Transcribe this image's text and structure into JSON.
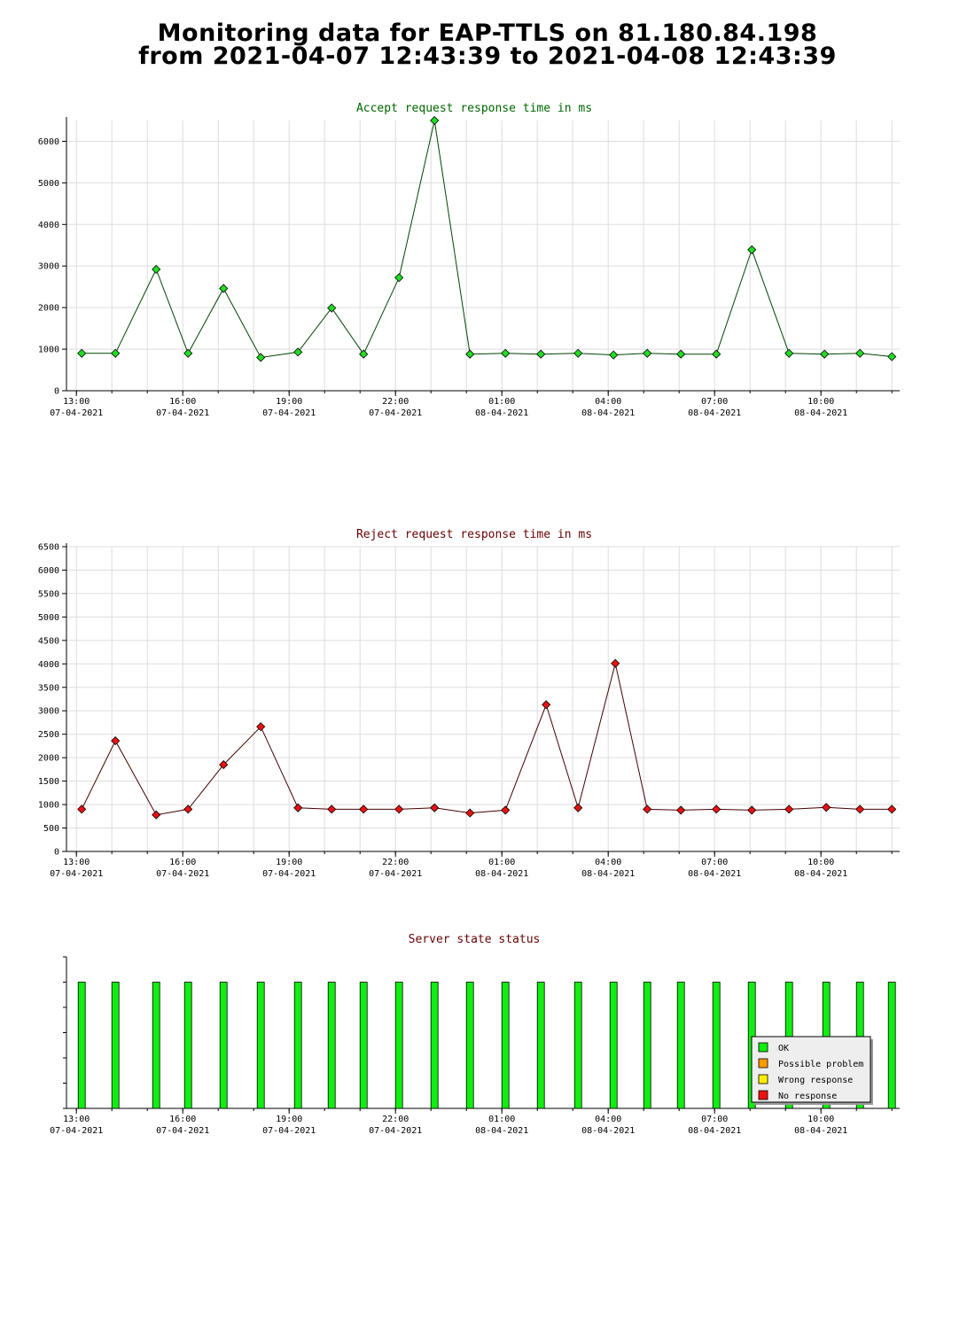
{
  "page": {
    "title_line1": "Monitoring data for EAP-TTLS on 81.180.84.198",
    "title_line2": "from 2021-04-07 12:43:39 to 2021-04-08 12:43:39"
  },
  "x_ticks": [
    {
      "hour": 13,
      "time": "13:00",
      "date": "07-04-2021"
    },
    {
      "hour": 16,
      "time": "16:00",
      "date": "07-04-2021"
    },
    {
      "hour": 19,
      "time": "19:00",
      "date": "07-04-2021"
    },
    {
      "hour": 22,
      "time": "22:00",
      "date": "07-04-2021"
    },
    {
      "hour": 25,
      "time": "01:00",
      "date": "08-04-2021"
    },
    {
      "hour": 28,
      "time": "04:00",
      "date": "08-04-2021"
    },
    {
      "hour": 31,
      "time": "07:00",
      "date": "08-04-2021"
    },
    {
      "hour": 34,
      "time": "10:00",
      "date": "08-04-2021"
    }
  ],
  "chart_data": [
    {
      "type": "line",
      "title": "Accept request response time in ms",
      "title_color": "#006600",
      "marker_color": "#22dd22",
      "line_color": "#004400",
      "xlim": [
        12.72,
        36.22
      ],
      "ylim": [
        0,
        6500
      ],
      "yticks": [
        0,
        1000,
        2000,
        3000,
        4000,
        5000,
        6000
      ],
      "grid": true,
      "x": [
        13.15,
        14.1,
        15.25,
        16.15,
        17.15,
        18.2,
        19.25,
        20.2,
        21.1,
        22.1,
        23.1,
        24.1,
        25.1,
        26.1,
        27.15,
        28.15,
        29.1,
        30.05,
        31.05,
        32.05,
        33.1,
        34.1,
        35.1,
        36.0
      ],
      "y": [
        900,
        900,
        2920,
        900,
        2460,
        800,
        930,
        1990,
        880,
        2720,
        6500,
        880,
        900,
        880,
        900,
        860,
        900,
        880,
        880,
        3390,
        900,
        880,
        900,
        820
      ]
    },
    {
      "type": "line",
      "title": "Reject request response time in ms",
      "title_color": "#660000",
      "marker_color": "#ee1111",
      "line_color": "#440000",
      "xlim": [
        12.72,
        36.22
      ],
      "ylim": [
        0,
        6500
      ],
      "yticks": [
        0,
        500,
        1000,
        1500,
        2000,
        2500,
        3000,
        3500,
        4000,
        4500,
        5000,
        5500,
        6000,
        6500
      ],
      "grid": true,
      "x": [
        13.15,
        14.1,
        15.25,
        16.15,
        17.15,
        18.2,
        19.25,
        20.2,
        21.1,
        22.1,
        23.1,
        24.1,
        25.1,
        26.25,
        27.15,
        28.2,
        29.1,
        30.05,
        31.05,
        32.05,
        33.1,
        34.15,
        35.1,
        36.0
      ],
      "y": [
        900,
        2360,
        780,
        900,
        1850,
        2660,
        930,
        900,
        900,
        900,
        930,
        820,
        880,
        3130,
        930,
        4010,
        900,
        880,
        900,
        880,
        900,
        940,
        900,
        900
      ]
    },
    {
      "type": "bar",
      "title": "Server state status",
      "title_color": "#660000",
      "xlim": [
        12.72,
        36.22
      ],
      "ylim": [
        0,
        1.2
      ],
      "grid": false,
      "x": [
        13.15,
        14.1,
        15.25,
        16.15,
        17.15,
        18.2,
        19.25,
        20.2,
        21.1,
        22.1,
        23.1,
        24.1,
        25.1,
        26.1,
        27.15,
        28.15,
        29.1,
        30.05,
        31.05,
        32.05,
        33.1,
        34.15,
        35.1,
        36.0
      ],
      "values": [
        1,
        1,
        1,
        1,
        1,
        1,
        1,
        1,
        1,
        1,
        1,
        1,
        1,
        1,
        1,
        1,
        1,
        1,
        1,
        1,
        1,
        1,
        1,
        1
      ],
      "bar_color": "#11ee11",
      "legend_placement": "bottom-right",
      "legend": [
        {
          "label": "OK",
          "color": "#11ee11"
        },
        {
          "label": "Possible problem",
          "color": "#ff9900"
        },
        {
          "label": "Wrong response",
          "color": "#ffee00"
        },
        {
          "label": "No response",
          "color": "#ee1111"
        }
      ]
    }
  ]
}
